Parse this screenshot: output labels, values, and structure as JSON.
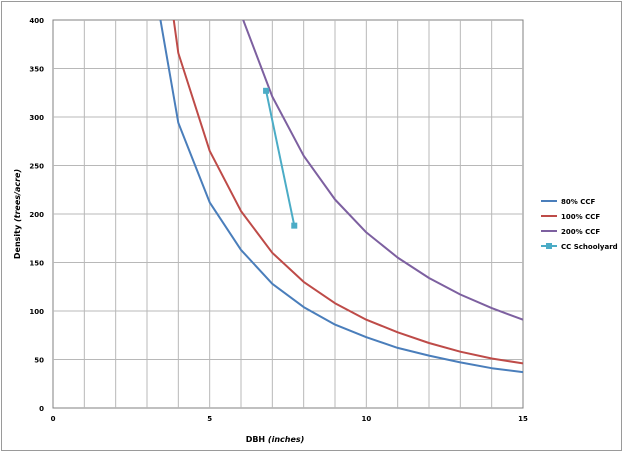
{
  "chart_data": {
    "type": "line",
    "xlabel_main": "DBH",
    "xlabel_unit": "(inches)",
    "ylabel_main": "Density",
    "ylabel_unit": "(trees/acre)",
    "xlim": [
      0,
      15
    ],
    "ylim": [
      0,
      400
    ],
    "x_ticks": [
      "0",
      "5",
      "10",
      "15"
    ],
    "y_ticks": [
      "0",
      "50",
      "100",
      "150",
      "200",
      "250",
      "300",
      "350",
      "400"
    ],
    "grid": true,
    "legend_position": "right",
    "series": [
      {
        "name": "80% CCF",
        "color": "#4a7ebb",
        "marker": "none",
        "points": [
          [
            3,
            480
          ],
          [
            4,
            294
          ],
          [
            5,
            212
          ],
          [
            6,
            163
          ],
          [
            7,
            128
          ],
          [
            8,
            104
          ],
          [
            9,
            86
          ],
          [
            10,
            73
          ],
          [
            11,
            62
          ],
          [
            12,
            54
          ],
          [
            13,
            47
          ],
          [
            14,
            41
          ],
          [
            15,
            37
          ]
        ]
      },
      {
        "name": "100% CCF",
        "color": "#be4b48",
        "marker": "none",
        "points": [
          [
            3,
            600
          ],
          [
            4,
            366
          ],
          [
            5,
            265
          ],
          [
            6,
            203
          ],
          [
            7,
            160
          ],
          [
            8,
            130
          ],
          [
            9,
            108
          ],
          [
            10,
            91
          ],
          [
            11,
            78
          ],
          [
            12,
            67
          ],
          [
            13,
            58
          ],
          [
            14,
            51
          ],
          [
            15,
            46
          ]
        ]
      },
      {
        "name": "200% CCF",
        "color": "#7d60a0",
        "marker": "none",
        "points": [
          [
            5,
            530
          ],
          [
            6,
            406
          ],
          [
            7,
            321
          ],
          [
            8,
            260
          ],
          [
            9,
            215
          ],
          [
            10,
            181
          ],
          [
            11,
            155
          ],
          [
            12,
            134
          ],
          [
            13,
            117
          ],
          [
            14,
            103
          ],
          [
            15,
            91
          ]
        ]
      },
      {
        "name": "CC Schoolyard",
        "color": "#4bacc6",
        "marker": "square",
        "points": [
          [
            6.8,
            327
          ],
          [
            7.7,
            188
          ]
        ]
      }
    ]
  }
}
